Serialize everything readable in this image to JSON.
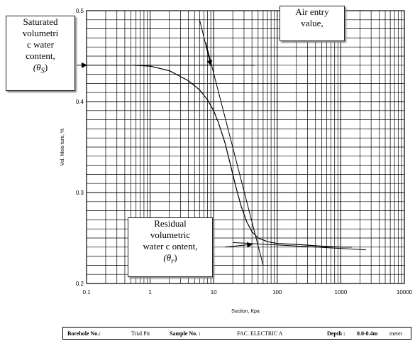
{
  "chart_data": {
    "type": "line",
    "x_scale": "log",
    "xlim": [
      0.1,
      10000
    ],
    "ylim": [
      0.2,
      0.5
    ],
    "xlabel": "Suction, Kpa",
    "ylabel": "Vol. Mois ture, %",
    "x_ticks": [
      "0.1",
      "1",
      "10",
      "100",
      "1000",
      "10000"
    ],
    "y_ticks": [
      "0.2",
      "0.3",
      "0.4",
      "0.5"
    ],
    "grid": true,
    "series": [
      {
        "x": [
          0.55,
          1,
          2,
          4,
          6,
          8,
          10,
          12,
          15,
          18,
          22,
          27,
          33,
          40,
          50,
          70,
          100,
          200,
          500,
          1000,
          1500
        ],
        "y": [
          0.44,
          0.439,
          0.434,
          0.423,
          0.413,
          0.402,
          0.39,
          0.376,
          0.355,
          0.333,
          0.308,
          0.285,
          0.268,
          0.257,
          0.25,
          0.246,
          0.244,
          0.243,
          0.241,
          0.24,
          0.24
        ]
      }
    ],
    "construction_lines": [
      {
        "x": [
          0.1,
          45
        ],
        "y": [
          0.44,
          0.44
        ]
      },
      {
        "x": [
          7.5,
          60
        ],
        "y": [
          0.465,
          0.22
        ]
      },
      {
        "x": [
          20,
          2500
        ],
        "y": [
          0.245,
          0.237
        ]
      }
    ],
    "arrows": [
      {
        "from": [
          6,
          0.49
        ],
        "to": [
          9,
          0.44
        ]
      },
      {
        "from": [
          0.07,
          0.44
        ],
        "to": [
          0.1,
          0.44
        ]
      },
      {
        "from": [
          15,
          0.24
        ],
        "to": [
          40,
          0.243
        ]
      }
    ]
  },
  "annotations": {
    "saturated": {
      "l1": "Saturated",
      "l2": "volumetri",
      "l3": "c water",
      "l4": "content,",
      "l5": "(θ",
      "l5sub": "S",
      "l5end": ")"
    },
    "air_entry": {
      "l1": "Air entry",
      "l2": "value,"
    },
    "residual": {
      "l1": "Residual",
      "l2": "volumetric",
      "l3": "water c ontent,",
      "l4": "(θ",
      "l4sub": "r",
      "l4end": ")"
    }
  },
  "footer": {
    "borehole_label": "Borehole No.:",
    "borehole_value": "Trial Pit",
    "sample_label": "Sample No. :",
    "sample_value": "FAC. ELECTRIC A",
    "depth_label": "Depth :",
    "depth_value": "0.0-0.4m",
    "depth_unit": "meter"
  }
}
